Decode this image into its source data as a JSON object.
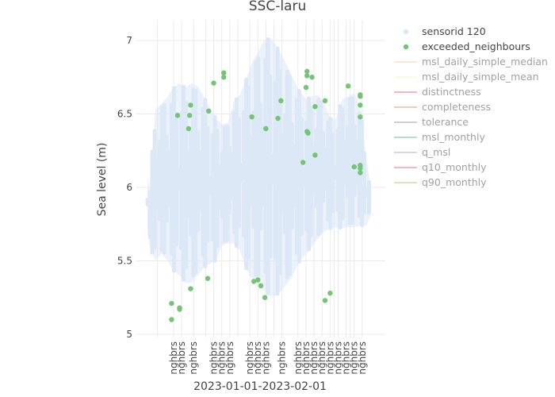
{
  "chart_data": {
    "type": "scatter",
    "title": "SSC-laru",
    "xlabel": "2023-01-01-2023-02-01",
    "ylabel": "Sea level (m)",
    "ylim": [
      5,
      7.12
    ],
    "yticks": [
      5,
      5.5,
      6,
      6.5,
      7
    ],
    "ytick_labels": [
      "5",
      "5.5",
      "6",
      "6.5",
      "7"
    ],
    "grid": true,
    "legend_placement": "right",
    "x_tick_label": "nghbrs",
    "x_tick_days": [
      1.3,
      1.7,
      2.3,
      3.3,
      3.7,
      4.1,
      5.1,
      5.5,
      5.9,
      6.7,
      7.5,
      7.9,
      8.3,
      8.7,
      9.1,
      9.5,
      9.9,
      10.3,
      10.7
    ],
    "x_range_days": [
      0,
      11.5
    ],
    "sensor_band": {
      "name": "sensorid 120",
      "color": "#dce8f5",
      "days": [
        0,
        0.1,
        0.4,
        0.7,
        1.0,
        1.3,
        1.6,
        1.9,
        2.2,
        2.5,
        2.8,
        3.1,
        3.4,
        3.7,
        4.0,
        4.3,
        4.6,
        4.9,
        5.2,
        5.5,
        5.8,
        6.1,
        6.4,
        6.7,
        7.0,
        7.3,
        7.6,
        7.9,
        8.2,
        8.5,
        8.8,
        9.1,
        9.4,
        9.7,
        10.0,
        10.3,
        10.6,
        10.9,
        11.1
      ],
      "high": [
        6.07,
        6.0,
        6.53,
        6.57,
        6.62,
        6.68,
        6.71,
        6.68,
        6.71,
        6.69,
        6.62,
        6.55,
        6.47,
        6.43,
        6.44,
        6.58,
        6.63,
        6.73,
        6.85,
        6.92,
        7.0,
        7.02,
        6.97,
        6.9,
        6.82,
        6.73,
        6.65,
        6.6,
        6.62,
        6.63,
        6.58,
        6.47,
        6.47,
        6.6,
        6.62,
        6.64,
        6.56,
        6.2,
        6.03
      ],
      "low": [
        5.73,
        5.6,
        5.5,
        5.55,
        5.5,
        5.43,
        5.4,
        5.35,
        5.35,
        5.4,
        5.45,
        5.48,
        5.5,
        5.6,
        5.62,
        5.62,
        5.57,
        5.45,
        5.38,
        5.35,
        5.3,
        5.26,
        5.26,
        5.3,
        5.35,
        5.42,
        5.5,
        5.55,
        5.6,
        5.65,
        5.7,
        5.72,
        5.73,
        5.72,
        5.73,
        5.73,
        5.74,
        5.74,
        5.8
      ]
    },
    "exceeded_neighbours": {
      "name": "exceeded_neighbours",
      "color": "#74c476",
      "points": [
        {
          "x": 1.2,
          "y": 5.21
        },
        {
          "x": 1.2,
          "y": 5.1
        },
        {
          "x": 1.5,
          "y": 6.49
        },
        {
          "x": 1.6,
          "y": 5.17
        },
        {
          "x": 1.6,
          "y": 5.18
        },
        {
          "x": 2.05,
          "y": 6.4
        },
        {
          "x": 2.1,
          "y": 6.49
        },
        {
          "x": 2.15,
          "y": 6.56
        },
        {
          "x": 2.15,
          "y": 5.31
        },
        {
          "x": 3.0,
          "y": 5.38
        },
        {
          "x": 3.05,
          "y": 6.52
        },
        {
          "x": 3.3,
          "y": 6.71
        },
        {
          "x": 3.8,
          "y": 6.78
        },
        {
          "x": 3.8,
          "y": 6.75
        },
        {
          "x": 5.2,
          "y": 6.48
        },
        {
          "x": 5.3,
          "y": 5.36
        },
        {
          "x": 5.5,
          "y": 5.37
        },
        {
          "x": 5.65,
          "y": 5.33
        },
        {
          "x": 5.85,
          "y": 5.25
        },
        {
          "x": 5.9,
          "y": 6.4
        },
        {
          "x": 6.5,
          "y": 6.47
        },
        {
          "x": 6.65,
          "y": 6.59
        },
        {
          "x": 7.75,
          "y": 6.17
        },
        {
          "x": 7.9,
          "y": 6.68
        },
        {
          "x": 7.95,
          "y": 6.79
        },
        {
          "x": 7.95,
          "y": 6.76
        },
        {
          "x": 7.95,
          "y": 6.38
        },
        {
          "x": 8.0,
          "y": 6.37
        },
        {
          "x": 8.2,
          "y": 6.75
        },
        {
          "x": 8.35,
          "y": 6.55
        },
        {
          "x": 8.35,
          "y": 6.22
        },
        {
          "x": 8.85,
          "y": 6.59
        },
        {
          "x": 8.85,
          "y": 5.23
        },
        {
          "x": 9.1,
          "y": 5.28
        },
        {
          "x": 10.0,
          "y": 6.69
        },
        {
          "x": 10.3,
          "y": 6.14
        },
        {
          "x": 10.6,
          "y": 6.63
        },
        {
          "x": 10.6,
          "y": 6.62
        },
        {
          "x": 10.6,
          "y": 6.56
        },
        {
          "x": 10.6,
          "y": 6.48
        },
        {
          "x": 10.6,
          "y": 6.15
        },
        {
          "x": 10.6,
          "y": 6.13
        },
        {
          "x": 10.6,
          "y": 6.1
        }
      ]
    },
    "legend": [
      {
        "label": "sensorid 120",
        "symbol": "dot",
        "color": "#dce8f5",
        "active": true
      },
      {
        "label": "exceeded_neighbours",
        "symbol": "dot",
        "color": "#74c476",
        "active": true
      },
      {
        "label": "msl_daily_simple_median",
        "symbol": "line",
        "color": "#fdd0a2",
        "active": false
      },
      {
        "label": "msl_daily_simple_mean",
        "symbol": "line",
        "color": "#f7fcb9",
        "active": false
      },
      {
        "label": "distinctness",
        "symbol": "line",
        "color": "#f768a1",
        "active": false
      },
      {
        "label": "completeness",
        "symbol": "line",
        "color": "#d4a373",
        "active": false
      },
      {
        "label": "tolerance",
        "symbol": "line",
        "color": "#a0a0a0",
        "active": false
      },
      {
        "label": "msl_monthly",
        "symbol": "line",
        "color": "#66c2a5",
        "active": false
      },
      {
        "label": "q_msl",
        "symbol": "line",
        "color": "#b2abd2",
        "active": false
      },
      {
        "label": "q10_monthly",
        "symbol": "line",
        "color": "#f768a1",
        "active": false
      },
      {
        "label": "q90_monthly",
        "symbol": "line",
        "color": "#a6d96a",
        "active": false
      }
    ]
  }
}
